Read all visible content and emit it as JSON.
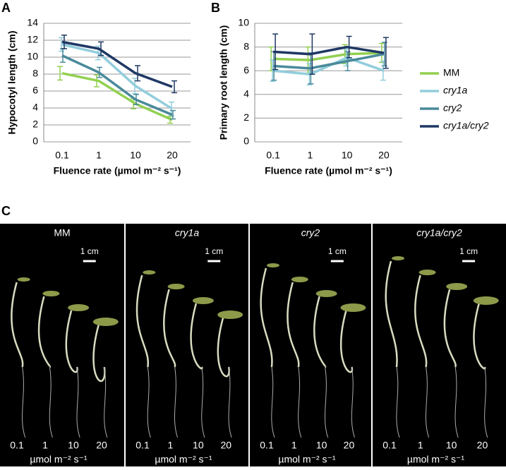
{
  "chart_data": [
    {
      "type": "line",
      "panel": "A",
      "y_label": "Hypocotyl length (cm)",
      "x_label": "Fluence rate (µmol m⁻² s⁻¹)",
      "categories": [
        "0.1",
        "1",
        "10",
        "20"
      ],
      "ylim": [
        0,
        14
      ],
      "yticks": [
        0,
        2,
        4,
        6,
        8,
        10,
        12,
        14
      ],
      "grid": true,
      "series": [
        {
          "color": "#92d050",
          "values": [
            8.1,
            7.2,
            4.5,
            2.6
          ],
          "errors": [
            0.8,
            0.7,
            0.6,
            0.4
          ]
        },
        {
          "color": "#92cddc",
          "values": [
            11.5,
            10.5,
            6.6,
            3.9
          ],
          "errors": [
            0.8,
            0.8,
            0.9,
            0.8
          ]
        },
        {
          "color": "#4a8a9a",
          "values": [
            10.2,
            8.2,
            5.0,
            3.2
          ],
          "errors": [
            0.8,
            0.6,
            0.6,
            0.5
          ]
        },
        {
          "color": "#1f3864",
          "values": [
            11.8,
            11.0,
            8.1,
            6.5
          ],
          "errors": [
            0.8,
            0.8,
            0.9,
            0.7
          ]
        }
      ]
    },
    {
      "type": "line",
      "panel": "B",
      "y_label": "Primary root length (cm)",
      "x_label": "Fluence rate (µmol m⁻² s⁻¹)",
      "categories": [
        "0.1",
        "1",
        "10",
        "20"
      ],
      "ylim": [
        0,
        10
      ],
      "yticks": [
        0,
        2,
        4,
        6,
        8,
        10
      ],
      "grid": true,
      "legend": "right",
      "series": [
        {
          "name": "MM",
          "color": "#92d050",
          "values": [
            7.0,
            6.9,
            7.4,
            7.5
          ],
          "errors": [
            1.0,
            1.1,
            0.8,
            0.8
          ]
        },
        {
          "name": "cry1a",
          "color": "#92cddc",
          "values": [
            6.0,
            5.7,
            7.1,
            6.0
          ],
          "errors": [
            0.9,
            0.9,
            0.7,
            0.8
          ]
        },
        {
          "name": "cry2",
          "color": "#4a8a9a",
          "values": [
            6.4,
            6.2,
            6.8,
            7.4
          ],
          "errors": [
            1.2,
            1.3,
            0.8,
            1.0
          ]
        },
        {
          "name": "cry1a/cry2",
          "color": "#1f3864",
          "values": [
            7.6,
            7.4,
            8.0,
            7.5
          ],
          "errors": [
            1.5,
            1.7,
            0.9,
            1.3
          ]
        }
      ]
    }
  ],
  "panel_c": {
    "letter": "C",
    "panels": [
      {
        "label": "MM",
        "scale_bar": "1 cm",
        "fluences": [
          "0.1",
          "1",
          "10",
          "20"
        ],
        "unit": "µmol m⁻² s⁻¹"
      },
      {
        "label": "cry1a",
        "scale_bar": "1 cm",
        "fluences": [
          "0.1",
          "1",
          "10",
          "20"
        ],
        "unit": "µmol m⁻² s⁻¹"
      },
      {
        "label": "cry2",
        "scale_bar": "1 cm",
        "fluences": [
          "0.1",
          "1",
          "10",
          "20"
        ],
        "unit": "µmol m⁻² s⁻¹"
      },
      {
        "label": "cry1a/cry2",
        "scale_bar": "1 cm",
        "fluences": [
          "0.1",
          "1",
          "10",
          "20"
        ],
        "unit": "µmol m⁻² s⁻¹"
      }
    ]
  }
}
